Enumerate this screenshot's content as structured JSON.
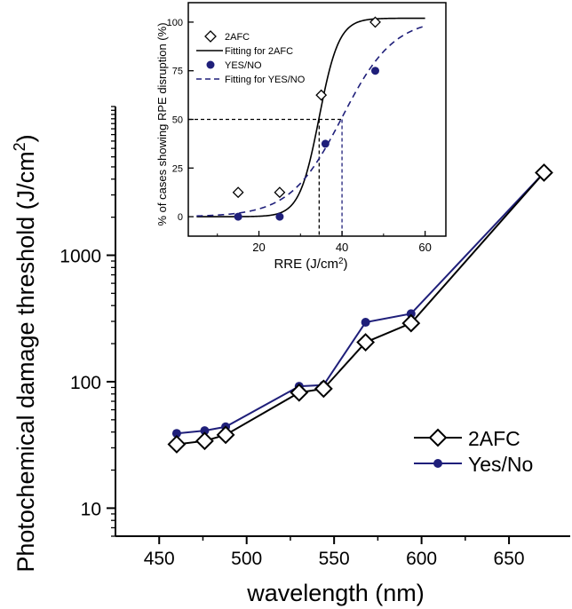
{
  "chart_data": [
    {
      "type": "line",
      "title": "",
      "xlabel": "wavelength (nm)",
      "ylabel": "Photochemical damage threshold (J/cm",
      "ylabel_sup": "2",
      "ylabel_close": ")",
      "xscale": "linear",
      "yscale": "log",
      "xlim": [
        425,
        685
      ],
      "ylim": [
        6,
        15000
      ],
      "xticks": [
        450,
        500,
        550,
        600,
        650
      ],
      "xtick_labels": [
        "450",
        "500",
        "550",
        "600",
        "650"
      ],
      "yticks": [
        10,
        100,
        1000
      ],
      "ytick_labels": [
        "10",
        "100",
        "1000"
      ],
      "grid": false,
      "legend_position": "bottom-right",
      "series": [
        {
          "name": "2AFC",
          "marker": "open-diamond",
          "color": "#000000",
          "points": [
            {
              "x": 460,
              "y": 32
            },
            {
              "x": 476,
              "y": 34
            },
            {
              "x": 488,
              "y": 38
            },
            {
              "x": 530,
              "y": 82
            },
            {
              "x": 544,
              "y": 88
            },
            {
              "x": 568,
              "y": 205
            },
            {
              "x": 594,
              "y": 290
            },
            {
              "x": 670,
              "y": 4500
            }
          ]
        },
        {
          "name": "Yes/No",
          "marker": "filled-circle",
          "color": "#1f1f7a",
          "points": [
            {
              "x": 460,
              "y": 39
            },
            {
              "x": 476,
              "y": 41
            },
            {
              "x": 488,
              "y": 44
            },
            {
              "x": 530,
              "y": 92
            },
            {
              "x": 544,
              "y": 94
            },
            {
              "x": 568,
              "y": 295
            },
            {
              "x": 594,
              "y": 345
            },
            {
              "x": 670,
              "y": 4500
            }
          ]
        }
      ]
    },
    {
      "type": "scatter",
      "title": "",
      "xlabel": "RRE (J/cm",
      "xlabel_sup": "2",
      "xlabel_close": ")",
      "ylabel": "% of cases showing RPE disruption (%)",
      "xlim": [
        3,
        65
      ],
      "ylim": [
        -10,
        110
      ],
      "xticks": [
        20,
        40,
        60
      ],
      "xtick_labels": [
        "20",
        "40",
        "60"
      ],
      "yticks": [
        0,
        25,
        50,
        75,
        100
      ],
      "ytick_labels": [
        "0",
        "25",
        "50",
        "75",
        "100"
      ],
      "legend_position": "top-left",
      "threshold_level": 50,
      "thresholds": [
        {
          "series": "2AFC",
          "x": 34.5
        },
        {
          "series": "YES/NO",
          "x": 40
        }
      ],
      "series": [
        {
          "name": "2AFC",
          "marker": "open-diamond",
          "color": "#000000",
          "points": [
            {
              "x": 15,
              "y": 12.5
            },
            {
              "x": 25,
              "y": 12.5
            },
            {
              "x": 35,
              "y": 62.5
            },
            {
              "x": 48,
              "y": 100
            }
          ]
        },
        {
          "name": "Fitting for 2AFC",
          "marker": "solid-line",
          "color": "#000000",
          "fit": {
            "x50": 34.5,
            "slope": 0.42,
            "ymax": 102,
            "xmin": 5,
            "xmax": 60
          }
        },
        {
          "name": "YES/NO",
          "marker": "filled-circle",
          "color": "#1f1f7a",
          "points": [
            {
              "x": 15,
              "y": 0
            },
            {
              "x": 25,
              "y": 0
            },
            {
              "x": 36,
              "y": 37.5
            },
            {
              "x": 48,
              "y": 75
            }
          ]
        },
        {
          "name": "Fitting for YES/NO",
          "marker": "dashed-line",
          "color": "#1f1f7a",
          "fit": {
            "x50": 40,
            "slope": 0.16,
            "ymax": 102,
            "xmin": 5,
            "xmax": 60
          }
        }
      ]
    }
  ]
}
